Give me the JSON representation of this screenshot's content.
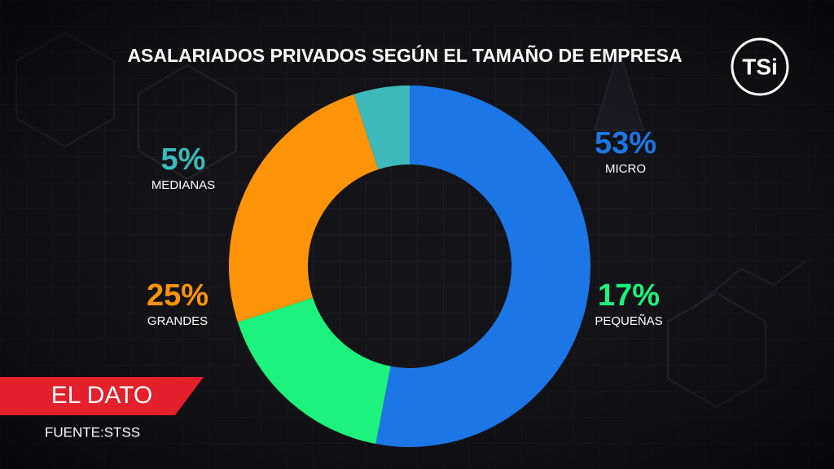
{
  "chart_data": {
    "type": "donut",
    "title": "ASALARIADOS PRIVADOS SEGÚN EL TAMAÑO DE EMPRESA",
    "categories": [
      "MICRO",
      "PEQUEÑAS",
      "GRANDES",
      "MEDIANAS"
    ],
    "values": [
      53,
      17,
      25,
      5
    ],
    "value_labels": [
      "53%",
      "17%",
      "25%",
      "5%"
    ],
    "colors": [
      "#1c76e6",
      "#1df27c",
      "#ff9408",
      "#3db9b9"
    ],
    "source": "FUENTE:STSS"
  },
  "branding": {
    "segment": "EL DATO",
    "channel": "TSi"
  }
}
